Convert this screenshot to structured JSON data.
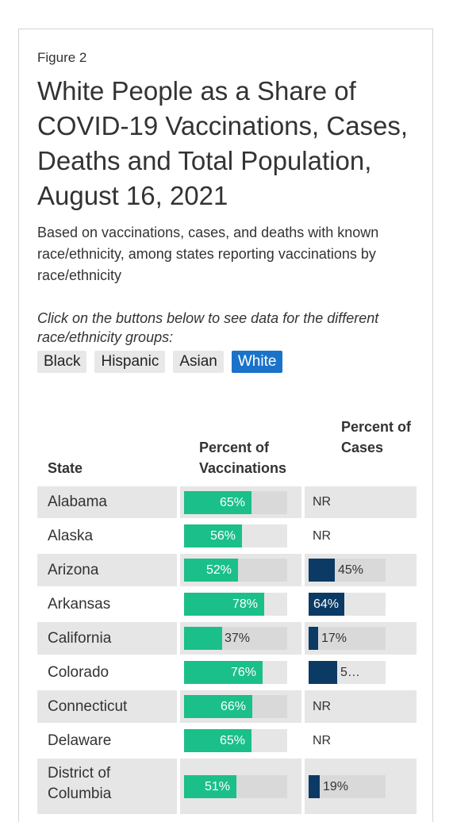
{
  "figure_label": "Figure 2",
  "title": "White People as a Share of COVID-19 Vaccinations, Cases, Deaths and Total Population, August 16, 2021",
  "subtitle": "Based on vaccinations, cases, and deaths with known race/ethnicity, among states reporting vaccinations by race/ethnicity",
  "instructions": "Click on the buttons below to see data for the different race/ethnicity groups:",
  "buttons": [
    {
      "label": "Black",
      "active": false
    },
    {
      "label": "Hispanic",
      "active": false
    },
    {
      "label": "Asian",
      "active": false
    },
    {
      "label": "White",
      "active": true
    }
  ],
  "colors": {
    "vaccinations": "#1bbf8a",
    "cases": "#0b3a64",
    "active_button": "#1a73c9"
  },
  "chart_data": {
    "type": "table",
    "columns": [
      "State",
      "Percent of Vaccinations",
      "Percent of Cases"
    ],
    "rows": [
      {
        "state": "Alabama",
        "vacc": 65,
        "vacc_label": "65%",
        "cases": null,
        "cases_label": "NR"
      },
      {
        "state": "Alaska",
        "vacc": 56,
        "vacc_label": "56%",
        "cases": null,
        "cases_label": "NR"
      },
      {
        "state": "Arizona",
        "vacc": 52,
        "vacc_label": "52%",
        "cases": 45,
        "cases_label": "45%"
      },
      {
        "state": "Arkansas",
        "vacc": 78,
        "vacc_label": "78%",
        "cases": 64,
        "cases_label": "64%"
      },
      {
        "state": "California",
        "vacc": 37,
        "vacc_label": "37%",
        "cases": 17,
        "cases_label": "17%"
      },
      {
        "state": "Colorado",
        "vacc": 76,
        "vacc_label": "76%",
        "cases": 50,
        "cases_label": "5…"
      },
      {
        "state": "Connecticut",
        "vacc": 66,
        "vacc_label": "66%",
        "cases": null,
        "cases_label": "NR"
      },
      {
        "state": "Delaware",
        "vacc": 65,
        "vacc_label": "65%",
        "cases": null,
        "cases_label": "NR"
      },
      {
        "state": "District of Columbia",
        "vacc": 51,
        "vacc_label": "51%",
        "cases": 19,
        "cases_label": "19%"
      }
    ]
  }
}
